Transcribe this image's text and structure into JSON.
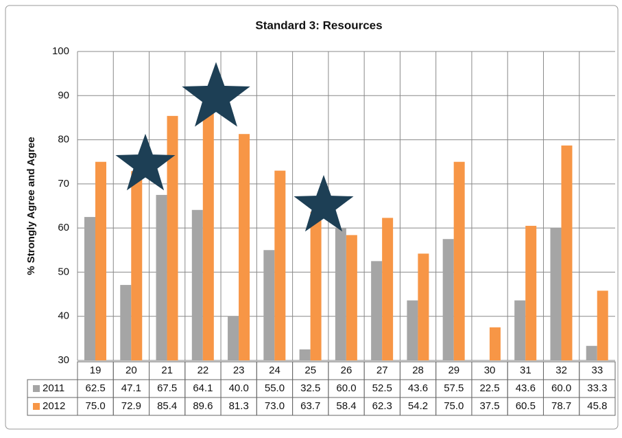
{
  "chart_data": {
    "type": "bar",
    "title": "Standard 3: Resources",
    "y_label": "% Strongly Agree and Agree",
    "categories": [
      "19",
      "20",
      "21",
      "22",
      "23",
      "24",
      "25",
      "26",
      "27",
      "28",
      "29",
      "30",
      "31",
      "32",
      "33"
    ],
    "series": [
      {
        "name": "2011",
        "color": "#a5a5a5",
        "values": [
          62.5,
          47.1,
          67.5,
          64.1,
          40.0,
          55.0,
          32.5,
          60.0,
          52.5,
          43.6,
          57.5,
          22.5,
          43.6,
          60.0,
          33.3
        ],
        "value_labels": [
          "62.5",
          "47.1",
          "67.5",
          "64.1",
          "40.0",
          "55.0",
          "32.5",
          "60.0",
          "52.5",
          "43.6",
          "57.5",
          "22.5",
          "43.6",
          "60.0",
          "33.3"
        ]
      },
      {
        "name": "2012",
        "color": "#f79646",
        "values": [
          75.0,
          72.9,
          85.4,
          89.6,
          81.3,
          73.0,
          63.7,
          58.4,
          62.3,
          54.2,
          75.0,
          37.5,
          60.5,
          78.7,
          45.8
        ],
        "value_labels": [
          "75.0",
          "72.9",
          "85.4",
          "89.6",
          "81.3",
          "73.0",
          "63.7",
          "58.4",
          "62.3",
          "54.2",
          "75.0",
          "37.5",
          "60.5",
          "78.7",
          "45.8"
        ]
      }
    ],
    "ylim": [
      30,
      100
    ],
    "yticks": [
      30,
      40,
      50,
      60,
      70,
      80,
      90,
      100
    ],
    "grid": true
  }
}
